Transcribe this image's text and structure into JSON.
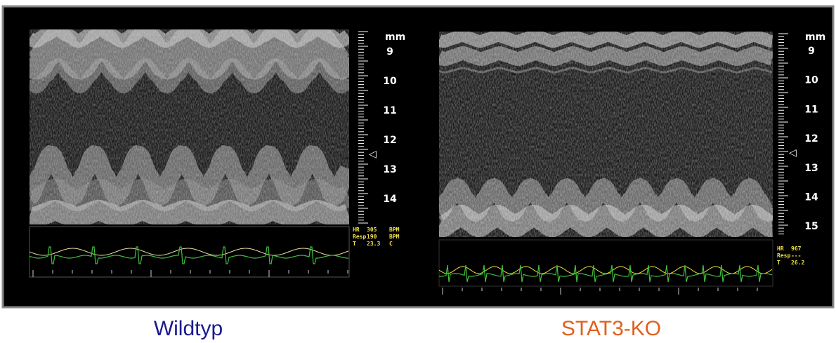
{
  "panels": [
    {
      "caption": "Wildtyp",
      "unit": "mm",
      "scale": [
        "9",
        "10",
        "11",
        "12",
        "13",
        "14"
      ],
      "vitals": [
        [
          "HR",
          "305",
          "BPM"
        ],
        [
          "Resp",
          "190",
          "BPM"
        ],
        [
          "T",
          "23.3",
          "C"
        ]
      ]
    },
    {
      "caption": "STAT3-KO",
      "unit": "mm",
      "scale": [
        "9",
        "10",
        "11",
        "12",
        "13",
        "14",
        "15"
      ],
      "vitals": [
        [
          "HR",
          "967"
        ],
        [
          "Resp",
          "---"
        ],
        [
          "T",
          "26.2"
        ]
      ]
    }
  ]
}
